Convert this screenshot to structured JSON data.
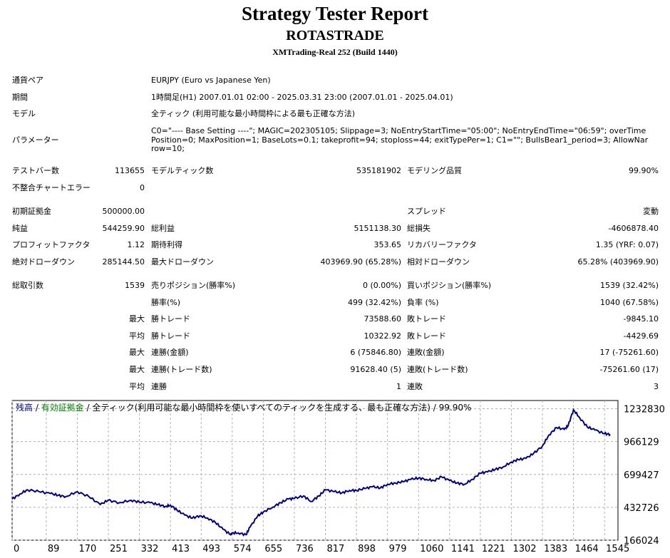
{
  "header": {
    "title": "Strategy Tester Report",
    "ea_name": "ROTASTRADE",
    "server": "XMTrading-Real 252 (Build 1440)"
  },
  "info": {
    "symbol_label": "通貨ペア",
    "symbol_value": "EURJPY (Euro vs Japanese Yen)",
    "period_label": "期間",
    "period_value": "1時間足(H1) 2007.01.01 02:00 - 2025.03.31 23:00 (2007.01.01 - 2025.04.01)",
    "model_label": "モデル",
    "model_value": "全ティック (利用可能な最小時間枠による最も正確な方法)",
    "params_label": "パラメーター",
    "params_value": "C0=\"---- Base Setting ----\"; MAGIC=202305105; Slippage=3; NoEntryStartTime=\"05:00\"; NoEntryEndTime=\"06:59\"; overTimePosition=0; MaxPosition=1; BaseLots=0.1; takeprofit=94; stoploss=44; exitTypePer=1; C1=\"\"; BullsBear1_period=3; AllowNarrow=10;"
  },
  "stats": {
    "bars_label": "テストバー数",
    "bars_value": "113655",
    "ticks_label": "モデルティック数",
    "ticks_value": "535181902",
    "quality_label": "モデリング品質",
    "quality_value": "99.90%",
    "mismatch_label": "不整合チャートエラー",
    "mismatch_value": "0",
    "deposit_label": "初期証拠金",
    "deposit_value": "500000.00",
    "spread_label": "スプレッド",
    "spread_value": "変動",
    "net_label": "純益",
    "net_value": "544259.90",
    "gross_profit_label": "総利益",
    "gross_profit_value": "5151138.30",
    "gross_loss_label": "総損失",
    "gross_loss_value": "-4606878.40",
    "pf_label": "プロフィットファクタ",
    "pf_value": "1.12",
    "expected_label": "期待利得",
    "expected_value": "353.65",
    "recovery_label": "リカバリーファクタ",
    "recovery_value": "1.35 (YRF: 0.07)",
    "abs_dd_label": "絶対ドローダウン",
    "abs_dd_value": "285144.50",
    "max_dd_label": "最大ドローダウン",
    "max_dd_value": "403969.90 (65.28%)",
    "rel_dd_label": "相対ドローダウン",
    "rel_dd_value": "65.28% (403969.90)",
    "trades_label": "総取引数",
    "trades_value": "1539",
    "short_label": "売りポジション(勝率%)",
    "short_value": "0 (0.00%)",
    "long_label": "買いポジション(勝率%)",
    "long_value": "1539 (32.42%)",
    "win_pct_label": "勝率(%)",
    "win_pct_value": "499 (32.42%)",
    "loss_pct_label": "負率 (%)",
    "loss_pct_value": "1040 (67.58%)",
    "max_word": "最大",
    "avg_word": "平均",
    "largest_win_label": "勝トレード",
    "largest_win_value": "73588.60",
    "largest_loss_label": "敗トレード",
    "largest_loss_value": "-9845.10",
    "avg_win_label": "勝トレード",
    "avg_win_value": "10322.92",
    "avg_loss_label": "敗トレード",
    "avg_loss_value": "-4429.69",
    "max_cons_win_label": "連勝(金額)",
    "max_cons_win_value": "6 (75846.80)",
    "max_cons_loss_label": "連敗(金額)",
    "max_cons_loss_value": "17 (-75261.60)",
    "max_cons_profit_label": "連勝(トレード数)",
    "max_cons_profit_value": "91628.40 (5)",
    "max_cons_lossamt_label": "連敗(トレード数)",
    "max_cons_lossamt_value": "-75261.60 (17)",
    "avg_cons_win_label": "連勝",
    "avg_cons_win_value": "1",
    "avg_cons_loss_label": "連敗",
    "avg_cons_loss_value": "3"
  },
  "chart_legend": {
    "balance": "残高",
    "sep1": " / ",
    "equity": "有効証拠金",
    "rest": " / 全ティック(利用可能な最小時間枠を使いすべてのティックを生成する、最も正確な方法) / 99.90%"
  },
  "chart_data": {
    "type": "line",
    "xlim": [
      0,
      1580
    ],
    "ylim": [
      166024,
      1299500
    ],
    "x_ticks": [
      0,
      89,
      170,
      251,
      332,
      413,
      493,
      574,
      655,
      736,
      817,
      898,
      979,
      1060,
      1141,
      1221,
      1302,
      1383,
      1464,
      1545
    ],
    "y_ticks": [
      1232830,
      966129,
      699427,
      432726,
      166024
    ],
    "series": [
      {
        "name": "残高",
        "color": "#000080",
        "x": [
          0,
          20,
          40,
          70,
          100,
          120,
          140,
          170,
          200,
          230,
          250,
          280,
          310,
          332,
          360,
          380,
          400,
          413,
          430,
          450,
          470,
          490,
          510,
          530,
          550,
          570,
          574,
          590,
          610,
          620,
          640,
          655,
          680,
          700,
          720,
          736,
          760,
          780,
          800,
          817,
          840,
          860,
          880,
          898,
          920,
          940,
          960,
          979,
          1000,
          1020,
          1040,
          1060,
          1080,
          1100,
          1120,
          1141,
          1160,
          1180,
          1200,
          1221,
          1240,
          1260,
          1280,
          1302,
          1320,
          1340,
          1360,
          1383,
          1400,
          1420,
          1440,
          1450,
          1464,
          1480,
          1500,
          1520,
          1545,
          1560
        ],
        "y": [
          500000,
          540000,
          575000,
          560000,
          545000,
          530000,
          520000,
          560000,
          520000,
          455000,
          490000,
          470000,
          490000,
          475000,
          470000,
          455000,
          440000,
          450000,
          410000,
          370000,
          345000,
          365000,
          345000,
          310000,
          255000,
          210000,
          225000,
          225000,
          210000,
          270000,
          360000,
          395000,
          435000,
          470000,
          500000,
          505000,
          525000,
          480000,
          525000,
          575000,
          560000,
          550000,
          570000,
          570000,
          585000,
          600000,
          590000,
          620000,
          630000,
          640000,
          660000,
          670000,
          660000,
          650000,
          680000,
          650000,
          630000,
          620000,
          660000,
          710000,
          720000,
          740000,
          760000,
          800000,
          820000,
          830000,
          870000,
          930000,
          1020000,
          1080000,
          1065000,
          1095000,
          1225000,
          1160000,
          1085000,
          1060000,
          1030000,
          1025000
        ]
      }
    ]
  }
}
